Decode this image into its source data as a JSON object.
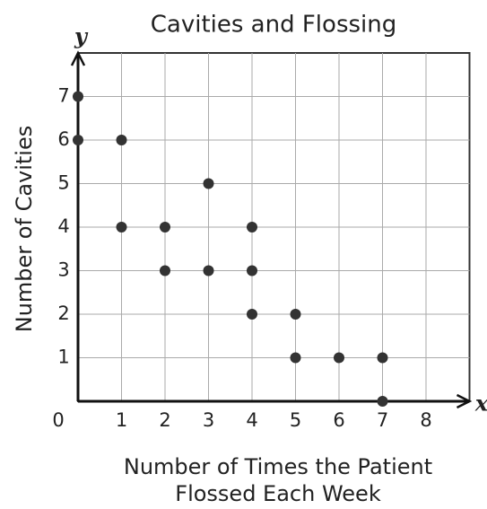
{
  "chart_data": {
    "type": "scatter",
    "title": "Cavities and Flossing",
    "x_label": [
      "Number of Times the Patient",
      "Flossed Each Week"
    ],
    "y_label": "Number of Cavities",
    "x_var": "x",
    "y_var": "y",
    "x": [
      0,
      0,
      1,
      1,
      2,
      2,
      3,
      3,
      4,
      4,
      4,
      5,
      5,
      6,
      7,
      7
    ],
    "values": [
      7,
      6,
      6,
      4,
      4,
      3,
      5,
      3,
      4,
      3,
      2,
      2,
      1,
      1,
      1,
      0
    ],
    "color": "#333333",
    "xlim": [
      0,
      9
    ],
    "ylim": [
      0,
      8
    ],
    "xticks": [
      0,
      1,
      2,
      3,
      4,
      5,
      6,
      7,
      8
    ],
    "yticks": [
      1,
      2,
      3,
      4,
      5,
      6,
      7
    ],
    "grid": true
  }
}
